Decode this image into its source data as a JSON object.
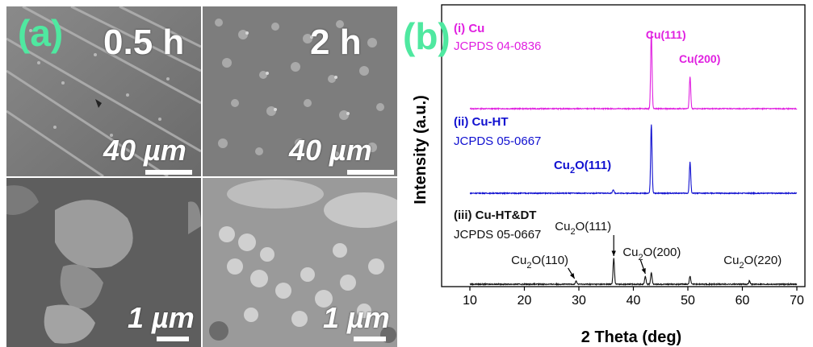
{
  "panel_a": {
    "letter": "(a)",
    "images": [
      {
        "time": "0.5 h",
        "scale": "40 µm"
      },
      {
        "time": "2 h",
        "scale": "40 µm"
      },
      {
        "time": "",
        "scale": "1 µm"
      },
      {
        "time": "",
        "scale": "1 µm"
      }
    ]
  },
  "panel_b": {
    "letter": "(b)"
  },
  "chart_data": {
    "type": "line",
    "xlabel": "2 Theta (deg)",
    "ylabel": "Intensity (a.u.)",
    "xlim": [
      10,
      70
    ],
    "xticks": [
      10,
      20,
      30,
      40,
      50,
      60,
      70
    ],
    "series": [
      {
        "name": "(i) Cu",
        "ref": "JCPDS 04-0836",
        "color": "#e020e0",
        "baseline": 0.0,
        "peaks": [
          {
            "x": 43.3,
            "h": 1.0,
            "label": "Cu(111)"
          },
          {
            "x": 50.4,
            "h": 0.42,
            "label": "Cu(200)"
          }
        ]
      },
      {
        "name": "(ii) Cu-HT",
        "ref": "JCPDS 05-0667",
        "color": "#1010d0",
        "baseline": 0.0,
        "peaks": [
          {
            "x": 36.3,
            "h": 0.05,
            "label": "Cu2O(111)"
          },
          {
            "x": 43.3,
            "h": 0.93,
            "label": ""
          },
          {
            "x": 50.4,
            "h": 0.42,
            "label": ""
          }
        ]
      },
      {
        "name": "(iii) Cu-HT&DT",
        "ref": "JCPDS 05-0667",
        "color": "#111111",
        "baseline": 0.0,
        "peaks": [
          {
            "x": 29.5,
            "h": 0.04,
            "label": "Cu2O(110)"
          },
          {
            "x": 36.4,
            "h": 0.33,
            "label": "Cu2O(111)"
          },
          {
            "x": 42.2,
            "h": 0.1,
            "label": "Cu2O(200)"
          },
          {
            "x": 43.3,
            "h": 0.15,
            "label": ""
          },
          {
            "x": 50.4,
            "h": 0.1,
            "label": ""
          },
          {
            "x": 61.3,
            "h": 0.04,
            "label": "Cu2O(220)"
          }
        ]
      }
    ]
  }
}
